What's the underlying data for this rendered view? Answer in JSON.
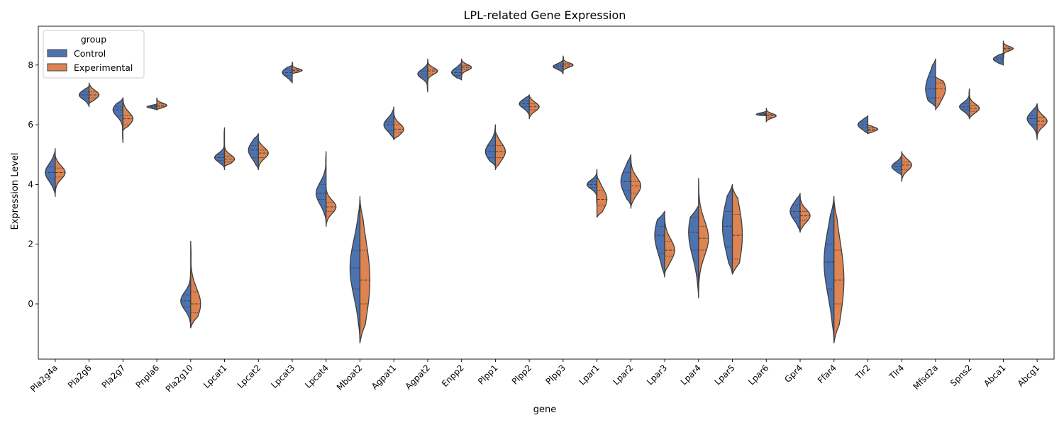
{
  "chart_data": {
    "type": "violin",
    "title": "LPL-related Gene Expression",
    "xlabel": "gene",
    "ylabel": "Expression Level",
    "ylim": [
      -1.85,
      9.3
    ],
    "yticks": [
      0,
      2,
      4,
      6,
      8
    ],
    "grid": false,
    "split": true,
    "inner": "quartile",
    "legend": {
      "title": "group",
      "position": "top-left",
      "entries": [
        {
          "name": "Control",
          "color": "#4c72b0"
        },
        {
          "name": "Experimental",
          "color": "#dd8452"
        }
      ]
    },
    "categories": [
      "Pla2g4a",
      "Pla2g6",
      "Pla2g7",
      "Pnpla6",
      "Pla2g10",
      "Lpcat1",
      "Lpcat2",
      "Lpcat3",
      "Lpcat4",
      "Mboat2",
      "Agpat1",
      "Agpat2",
      "Enpp2",
      "Plpp1",
      "Plpp2",
      "Plpp3",
      "Lpar1",
      "Lpar2",
      "Lpar3",
      "Lpar4",
      "Lpar5",
      "Lpar6",
      "Gpr4",
      "Ffar4",
      "Tlr2",
      "Tlr4",
      "Mfsd2a",
      "Spns2",
      "Abca1",
      "Abcg1"
    ],
    "series": [
      {
        "name": "Control",
        "color": "#4c72b0",
        "min": [
          3.6,
          6.6,
          5.4,
          6.5,
          -0.8,
          4.5,
          4.5,
          7.4,
          2.7,
          -1.3,
          5.5,
          7.1,
          7.5,
          4.6,
          6.3,
          7.7,
          3.3,
          3.3,
          0.9,
          0.2,
          1.0,
          6.3,
          2.4,
          -1.3,
          5.7,
          4.3,
          6.6,
          6.2,
          8.0,
          5.5
        ],
        "q1": [
          4.2,
          6.9,
          6.3,
          6.57,
          -0.1,
          4.8,
          4.9,
          7.65,
          3.5,
          0.5,
          5.8,
          7.6,
          7.65,
          4.9,
          6.6,
          7.88,
          3.9,
          3.8,
          1.7,
          1.8,
          1.9,
          6.32,
          2.9,
          0.5,
          5.9,
          4.5,
          6.9,
          6.5,
          8.1,
          6.0
        ],
        "median": [
          4.4,
          7.0,
          6.5,
          6.6,
          0.1,
          4.9,
          5.15,
          7.75,
          3.7,
          1.2,
          6.0,
          7.7,
          7.75,
          5.1,
          6.7,
          7.95,
          4.0,
          4.1,
          2.3,
          2.4,
          2.6,
          6.35,
          3.1,
          1.4,
          6.0,
          4.6,
          7.2,
          6.6,
          8.2,
          6.2
        ],
        "q3": [
          4.6,
          7.1,
          6.6,
          6.63,
          0.3,
          5.0,
          5.3,
          7.85,
          4.0,
          1.8,
          6.1,
          7.8,
          7.85,
          5.3,
          6.8,
          8.0,
          4.1,
          4.4,
          2.6,
          2.9,
          3.1,
          6.38,
          3.3,
          2.0,
          6.1,
          4.7,
          7.6,
          6.7,
          8.25,
          6.3
        ],
        "max": [
          5.2,
          7.3,
          6.9,
          6.7,
          1.1,
          5.9,
          5.7,
          8.0,
          5.1,
          3.6,
          6.6,
          8.1,
          8.1,
          6.0,
          7.0,
          8.2,
          4.5,
          5.0,
          3.1,
          3.3,
          4.0,
          6.45,
          3.7,
          3.6,
          6.3,
          5.0,
          8.2,
          7.2,
          8.4,
          6.7
        ]
      },
      {
        "name": "Experimental",
        "color": "#dd8452",
        "min": [
          3.7,
          6.7,
          5.8,
          6.5,
          -0.8,
          4.6,
          4.5,
          7.7,
          2.6,
          -1.3,
          5.5,
          7.4,
          7.6,
          4.5,
          6.2,
          7.8,
          2.9,
          3.2,
          1.0,
          0.3,
          1.0,
          6.1,
          2.4,
          -1.3,
          5.7,
          4.1,
          6.5,
          6.2,
          8.2,
          5.6
        ],
        "q1": [
          4.25,
          6.9,
          6.0,
          6.6,
          -0.3,
          4.75,
          4.9,
          7.78,
          3.1,
          0.0,
          5.75,
          7.7,
          7.85,
          4.9,
          6.5,
          7.95,
          3.3,
          3.7,
          1.6,
          1.8,
          1.5,
          6.25,
          2.8,
          0.0,
          5.8,
          4.5,
          6.9,
          6.45,
          8.5,
          6.0
        ],
        "median": [
          4.4,
          7.0,
          6.2,
          6.65,
          0.0,
          4.85,
          5.05,
          7.82,
          3.25,
          0.8,
          5.85,
          7.8,
          7.92,
          5.1,
          6.6,
          8.0,
          3.5,
          3.95,
          1.8,
          2.2,
          2.3,
          6.3,
          2.95,
          0.8,
          5.85,
          4.65,
          7.2,
          6.55,
          8.55,
          6.12
        ],
        "q3": [
          4.55,
          7.1,
          6.3,
          6.7,
          0.4,
          4.95,
          5.15,
          7.86,
          3.4,
          1.8,
          6.0,
          7.85,
          7.98,
          5.3,
          6.7,
          8.05,
          3.8,
          4.1,
          2.1,
          2.6,
          3.0,
          6.35,
          3.1,
          1.8,
          5.9,
          4.75,
          7.4,
          6.65,
          8.6,
          6.25
        ],
        "max": [
          5.0,
          7.4,
          6.9,
          6.9,
          2.1,
          5.3,
          5.5,
          8.1,
          3.9,
          3.5,
          6.4,
          8.2,
          8.2,
          5.8,
          7.0,
          8.3,
          4.3,
          4.9,
          2.9,
          4.2,
          3.9,
          6.55,
          3.6,
          3.5,
          6.0,
          5.1,
          7.6,
          7.0,
          8.8,
          6.7
        ]
      }
    ]
  }
}
